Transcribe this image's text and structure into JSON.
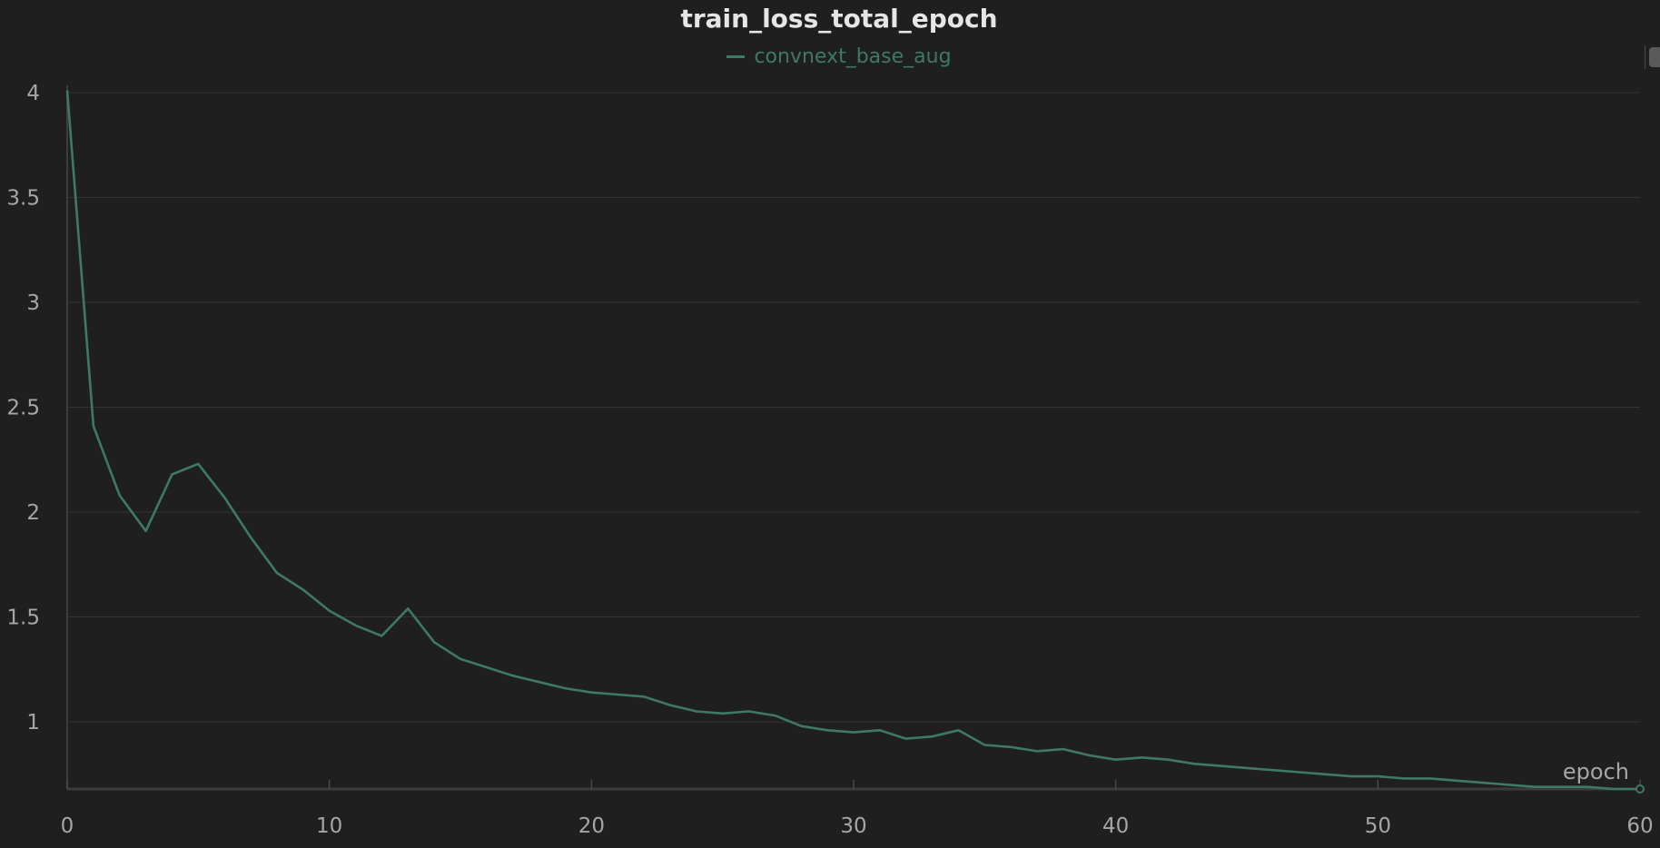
{
  "chart_data": {
    "type": "line",
    "title": "train_loss_total_epoch",
    "xlabel": "epoch",
    "ylabel": "",
    "xlim": [
      0,
      60
    ],
    "ylim": [
      0.68,
      4
    ],
    "x_ticks": [
      "0",
      "10",
      "20",
      "30",
      "40",
      "50",
      "60"
    ],
    "y_ticks": [
      "1",
      "1.5",
      "2",
      "2.5",
      "3",
      "3.5",
      "4"
    ],
    "grid": true,
    "legend_position": "top-center",
    "series": [
      {
        "name": "convnext_base_aug",
        "color": "#3e7a63",
        "x": [
          0,
          1,
          2,
          3,
          4,
          5,
          6,
          7,
          8,
          9,
          10,
          11,
          12,
          13,
          14,
          15,
          16,
          17,
          18,
          19,
          20,
          21,
          22,
          23,
          24,
          25,
          26,
          27,
          28,
          29,
          30,
          31,
          32,
          33,
          34,
          35,
          36,
          37,
          38,
          39,
          40,
          41,
          42,
          43,
          44,
          45,
          46,
          47,
          48,
          49,
          50,
          51,
          52,
          53,
          54,
          55,
          56,
          57,
          58,
          59,
          60
        ],
        "y": [
          4.01,
          2.41,
          2.08,
          1.91,
          2.18,
          2.23,
          2.07,
          1.88,
          1.71,
          1.63,
          1.53,
          1.46,
          1.41,
          1.54,
          1.38,
          1.3,
          1.26,
          1.22,
          1.19,
          1.16,
          1.14,
          1.13,
          1.12,
          1.08,
          1.05,
          1.04,
          1.05,
          1.03,
          0.98,
          0.96,
          0.95,
          0.96,
          0.92,
          0.93,
          0.96,
          0.89,
          0.88,
          0.86,
          0.87,
          0.84,
          0.82,
          0.83,
          0.82,
          0.8,
          0.79,
          0.78,
          0.77,
          0.76,
          0.75,
          0.74,
          0.74,
          0.73,
          0.73,
          0.72,
          0.71,
          0.7,
          0.69,
          0.69,
          0.69,
          0.68,
          0.68
        ]
      }
    ]
  }
}
